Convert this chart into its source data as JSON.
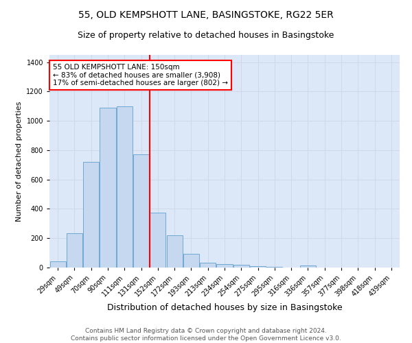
{
  "title": "55, OLD KEMPSHOTT LANE, BASINGSTOKE, RG22 5ER",
  "subtitle": "Size of property relative to detached houses in Basingstoke",
  "xlabel": "Distribution of detached houses by size in Basingstoke",
  "ylabel": "Number of detached properties",
  "categories": [
    "29sqm",
    "49sqm",
    "70sqm",
    "90sqm",
    "111sqm",
    "131sqm",
    "152sqm",
    "172sqm",
    "193sqm",
    "213sqm",
    "234sqm",
    "254sqm",
    "275sqm",
    "295sqm",
    "316sqm",
    "336sqm",
    "357sqm",
    "377sqm",
    "398sqm",
    "418sqm",
    "439sqm"
  ],
  "values": [
    40,
    235,
    720,
    1090,
    1100,
    770,
    375,
    220,
    95,
    35,
    25,
    20,
    10,
    5,
    0,
    15,
    0,
    0,
    0,
    0,
    0
  ],
  "bar_color": "#c5d8f0",
  "bar_edge_color": "#6fa8d4",
  "marker_label1": "55 OLD KEMPSHOTT LANE: 150sqm",
  "marker_label2": "← 83% of detached houses are smaller (3,908)",
  "marker_label3": "17% of semi-detached houses are larger (802) →",
  "marker_color": "red",
  "ylim": [
    0,
    1450
  ],
  "yticks": [
    0,
    200,
    400,
    600,
    800,
    1000,
    1200,
    1400
  ],
  "grid_color": "#d0d8e8",
  "background_color": "#dce8f8",
  "footnote1": "Contains HM Land Registry data © Crown copyright and database right 2024.",
  "footnote2": "Contains public sector information licensed under the Open Government Licence v3.0.",
  "title_fontsize": 10,
  "subtitle_fontsize": 9,
  "tick_fontsize": 7,
  "ylabel_fontsize": 8,
  "xlabel_fontsize": 9,
  "annot_fontsize": 7.5,
  "footnote_fontsize": 6.5
}
